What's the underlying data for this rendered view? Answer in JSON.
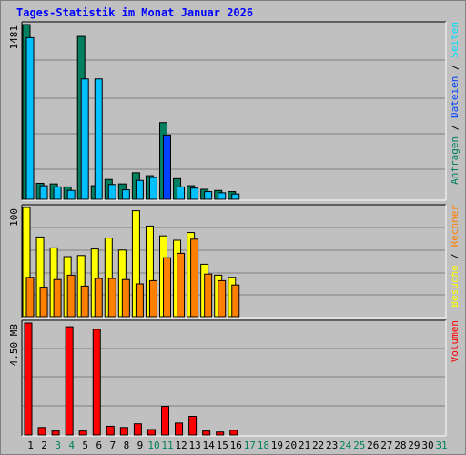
{
  "title": "Tages-Statistik im Monat Januar 2026",
  "days": [
    "1",
    "2",
    "3",
    "4",
    "5",
    "6",
    "7",
    "8",
    "9",
    "10",
    "11",
    "12",
    "13",
    "14",
    "15",
    "16",
    "17",
    "18",
    "19",
    "20",
    "21",
    "22",
    "23",
    "24",
    "25",
    "26",
    "27",
    "28",
    "29",
    "30",
    "31"
  ],
  "weekend_days": [
    "3",
    "4",
    "10",
    "11",
    "17",
    "18",
    "24",
    "25",
    "31"
  ],
  "colors": {
    "anfragen": "#008060",
    "dateien": "#00c0ff",
    "dateien_weekend": "#0040ff",
    "seiten": "#00e0ff",
    "besuche": "#ffff00",
    "rechner": "#ff8000",
    "volumen": "#ff0000",
    "weekend_label": "#00805c",
    "weekday_label": "#000000",
    "slash": "#000000"
  },
  "chart_data": [
    {
      "type": "bar",
      "panel": "top",
      "y_tick_label": "1481",
      "ylim": [
        0,
        1481
      ],
      "right_labels": [
        {
          "text": "Anfragen",
          "color": "#008060"
        },
        {
          "text": "Dateien",
          "color": "#0040ff"
        },
        {
          "text": "Seiten",
          "color": "#00e0ff"
        }
      ],
      "series": [
        {
          "name": "Anfragen",
          "values": [
            1481,
            135,
            130,
            105,
            1380,
            115,
            168,
            130,
            225,
            200,
            650,
            175,
            115,
            85,
            75,
            65,
            0,
            0,
            0,
            0,
            0,
            0,
            0,
            0,
            0,
            0,
            0,
            0,
            0,
            0,
            0
          ]
        },
        {
          "name": "Dateien",
          "values": [
            1370,
            115,
            105,
            75,
            1020,
            1020,
            125,
            80,
            160,
            185,
            545,
            105,
            95,
            65,
            55,
            45,
            0,
            0,
            0,
            0,
            0,
            0,
            0,
            0,
            0,
            0,
            0,
            0,
            0,
            0,
            0
          ]
        }
      ]
    },
    {
      "type": "bar",
      "panel": "middle",
      "y_tick_label": "100",
      "ylim": [
        0,
        100
      ],
      "right_labels": [
        {
          "text": "Besuche",
          "color": "#ffff00"
        },
        {
          "text": "Rechner",
          "color": "#ff8000"
        }
      ],
      "series": [
        {
          "name": "Besuche",
          "values": [
            100,
            73,
            63,
            55,
            56,
            62,
            72,
            61,
            97,
            83,
            74,
            70,
            77,
            48,
            38,
            36,
            0,
            0,
            0,
            0,
            0,
            0,
            0,
            0,
            0,
            0,
            0,
            0,
            0,
            0,
            0
          ]
        },
        {
          "name": "Rechner",
          "values": [
            36,
            27,
            34,
            38,
            28,
            35,
            35,
            34,
            30,
            33,
            54,
            58,
            71,
            39,
            33,
            29,
            0,
            0,
            0,
            0,
            0,
            0,
            0,
            0,
            0,
            0,
            0,
            0,
            0,
            0,
            0
          ]
        }
      ]
    },
    {
      "type": "bar",
      "panel": "bottom",
      "y_tick_label": "4.50 MB",
      "ylim": [
        0,
        4.5
      ],
      "right_labels": [
        {
          "text": "Volumen",
          "color": "#ff0000"
        }
      ],
      "series": [
        {
          "name": "Volumen",
          "values": [
            4.5,
            0.3,
            0.16,
            4.35,
            0.16,
            4.25,
            0.35,
            0.3,
            0.45,
            0.22,
            1.15,
            0.48,
            0.75,
            0.16,
            0.12,
            0.19,
            0,
            0,
            0,
            0,
            0,
            0,
            0,
            0,
            0,
            0,
            0,
            0,
            0,
            0,
            0
          ]
        }
      ]
    }
  ]
}
